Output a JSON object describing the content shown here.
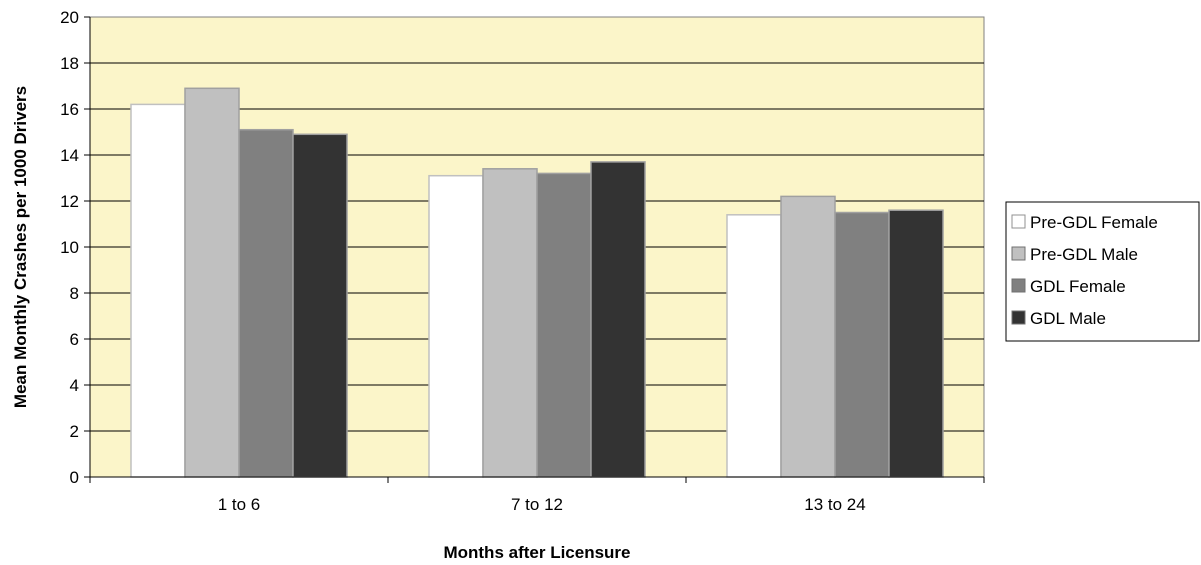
{
  "chart_data": {
    "type": "bar",
    "title": "",
    "xlabel": "Months after Licensure",
    "ylabel": "Mean Monthly Crashes per 1000 Drivers",
    "ylim": [
      0,
      20
    ],
    "yticks": [
      0,
      2,
      4,
      6,
      8,
      10,
      12,
      14,
      16,
      18,
      20
    ],
    "categories": [
      "1 to 6",
      "7 to 12",
      "13 to 24"
    ],
    "series": [
      {
        "name": "Pre-GDL Female",
        "values": [
          16.2,
          13.1,
          11.4
        ],
        "color": "#ffffff"
      },
      {
        "name": "Pre-GDL Male",
        "values": [
          16.9,
          13.4,
          12.2
        ],
        "color": "#c0c0c0"
      },
      {
        "name": "GDL Female",
        "values": [
          15.1,
          13.2,
          11.5
        ],
        "color": "#808080"
      },
      {
        "name": "GDL Male",
        "values": [
          14.9,
          13.7,
          11.6
        ],
        "color": "#333333"
      }
    ],
    "grid": true,
    "legend_position": "right",
    "plot_background": "#fbf5c9"
  }
}
